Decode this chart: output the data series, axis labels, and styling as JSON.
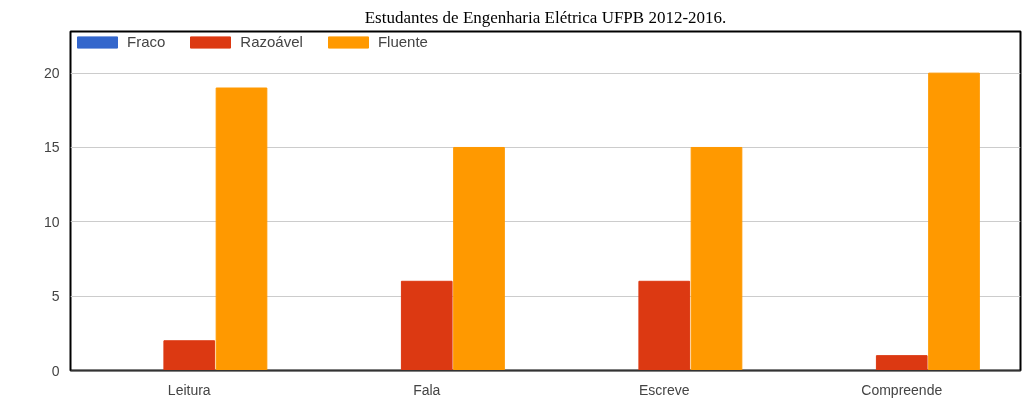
{
  "chart_data": {
    "type": "bar",
    "title": "Estudantes de Engenharia Elétrica UFPB 2012-2016.",
    "categories": [
      "Leitura",
      "Fala",
      "Escreve",
      "Compreende"
    ],
    "series": [
      {
        "name": "Fraco",
        "color": "#3366cc",
        "values": [
          0,
          0,
          0,
          0
        ]
      },
      {
        "name": "Razoável",
        "color": "#dc3912",
        "values": [
          2,
          6,
          6,
          1
        ]
      },
      {
        "name": "Fluente",
        "color": "#ff9900",
        "values": [
          19,
          15,
          15,
          20
        ]
      }
    ],
    "ylim": [
      0,
      22.8
    ],
    "yticks": [
      0,
      5,
      10,
      15,
      20
    ],
    "grid": "y",
    "legend": "top left"
  }
}
